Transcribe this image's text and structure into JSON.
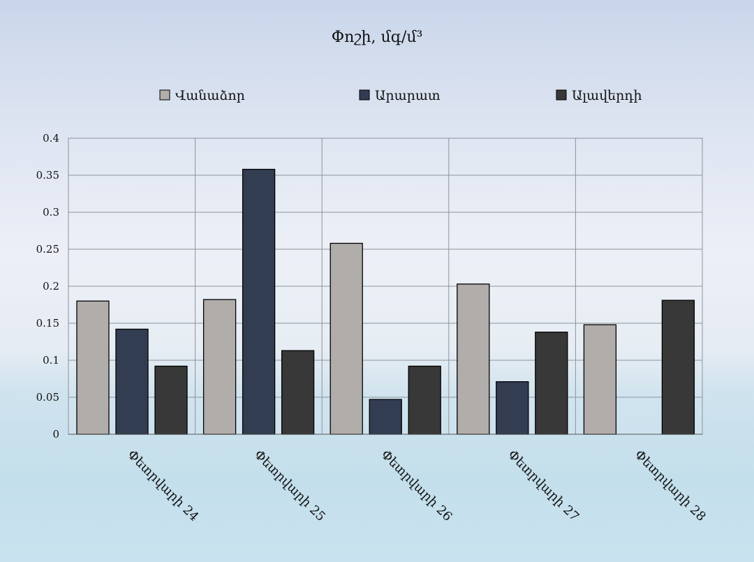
{
  "chart_data": {
    "type": "bar",
    "title": "Փոշի, մգ/մ³",
    "xlabel": "",
    "ylabel": "",
    "categories": [
      "Փետրվարի 24",
      "Փետրվարի 25",
      "Փետրվարի 26",
      "Փետրվարի 27",
      "Փետրվարի 28"
    ],
    "series": [
      {
        "name": "Վանաձոր",
        "color": "#b0adab",
        "values": [
          0.18,
          0.182,
          0.258,
          0.203,
          0.148
        ]
      },
      {
        "name": "Արարատ",
        "color": "#333d52",
        "values": [
          0.142,
          0.358,
          0.047,
          0.071,
          null
        ]
      },
      {
        "name": "Ալավերդի",
        "color": "#383838",
        "values": [
          0.092,
          0.113,
          0.092,
          0.138,
          0.181
        ]
      }
    ],
    "ylim": [
      0,
      0.4
    ],
    "yticks": [
      "0",
      "0.05",
      "0.1",
      "0.15",
      "0.2",
      "0.25",
      "0.3",
      "0.35",
      "0.4"
    ],
    "grid": true,
    "legend_position": "top"
  }
}
